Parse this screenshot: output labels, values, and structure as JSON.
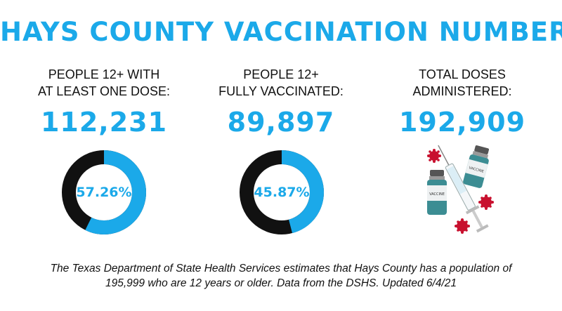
{
  "title": "HAYS COUNTY VACCINATION NUMBERS",
  "stats": [
    {
      "label": "PEOPLE  12+ WITH\nAT LEAST ONE DOSE:",
      "value": "112,231",
      "percent_text": "57.26%",
      "fraction": 0.5726
    },
    {
      "label": "PEOPLE 12+\nFULLY VACCINATED:",
      "value": "89,897",
      "percent_text": "45.87%",
      "fraction": 0.4587
    },
    {
      "label": "TOTAL DOSES\nADMINISTERED:",
      "value": "192,909"
    }
  ],
  "vial_labels": [
    "VACCINE",
    "VACCINE"
  ],
  "colors": {
    "accent": "#1ba9e9",
    "ring_base": "#111111",
    "virus": "#c8102e"
  },
  "footnote_line1": "The Texas Department of State Health Services estimates that Hays County has a population of",
  "footnote_line2": "195,999 who are 12 years or older. Data from the DSHS. Updated 6/4/21"
}
